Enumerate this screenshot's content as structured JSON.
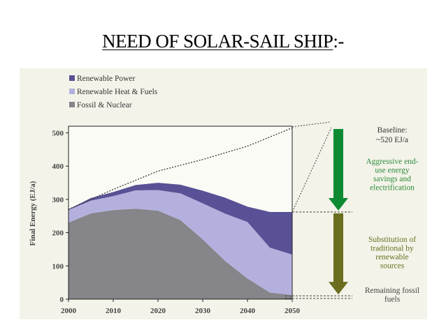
{
  "slide": {
    "title_main": "NEED OF SOLAR-SAIL SHIP",
    "title_suffix": ":-"
  },
  "chart_data": {
    "type": "area",
    "stacked": true,
    "title": "",
    "xlabel": "",
    "ylabel": "Final Energy (EJ/a)",
    "x": [
      2000,
      2005,
      2010,
      2015,
      2020,
      2025,
      2030,
      2035,
      2040,
      2045,
      2050
    ],
    "xticks": [
      2000,
      2010,
      2020,
      2030,
      2040,
      2050
    ],
    "yticks": [
      0,
      100,
      200,
      300,
      400,
      500
    ],
    "xlim": [
      2000,
      2050
    ],
    "ylim": [
      0,
      520
    ],
    "series": [
      {
        "name": "Fossil & Nuclear",
        "color": "#85858a",
        "values": [
          230,
          258,
          268,
          272,
          266,
          238,
          180,
          115,
          62,
          20,
          12
        ]
      },
      {
        "name": "Renewable Heat & Fuels",
        "color": "#b4b0de",
        "values": [
          38,
          38,
          42,
          55,
          62,
          80,
          108,
          142,
          170,
          135,
          122
        ]
      },
      {
        "name": "Renewable Power",
        "color": "#595195",
        "values": [
          2,
          8,
          12,
          16,
          22,
          26,
          38,
          48,
          46,
          107,
          128
        ]
      }
    ],
    "baseline": {
      "name": "Baseline",
      "x": [
        2000,
        2010,
        2020,
        2030,
        2040,
        2050
      ],
      "values": [
        270,
        330,
        385,
        420,
        460,
        515
      ],
      "style": "dotted"
    },
    "legend": [
      "Renewable Power",
      "Renewable Heat & Fuels",
      "Fossil & Nuclear"
    ],
    "legend_placement": "top-left",
    "annotations": {
      "baseline_line1": "Baseline:",
      "baseline_line2": "~520 EJ/a",
      "savings": [
        "Aggressive end-",
        "use energy",
        "savings and",
        "electrification"
      ],
      "substitution": [
        "Substitution of",
        "traditional  by",
        "renewable",
        "sources"
      ],
      "remaining": [
        "Remaining fossil",
        "fuels"
      ],
      "baseline_value": 520,
      "level_2050_total": 262,
      "level_2050_fossil": 12
    },
    "colors": {
      "savings_arrow": "#0e8a33",
      "substitution_arrow": "#6b6e1f",
      "savings_text": "#2e8b3a",
      "substitution_text": "#6b6e1f",
      "axis_text": "#444444"
    }
  }
}
